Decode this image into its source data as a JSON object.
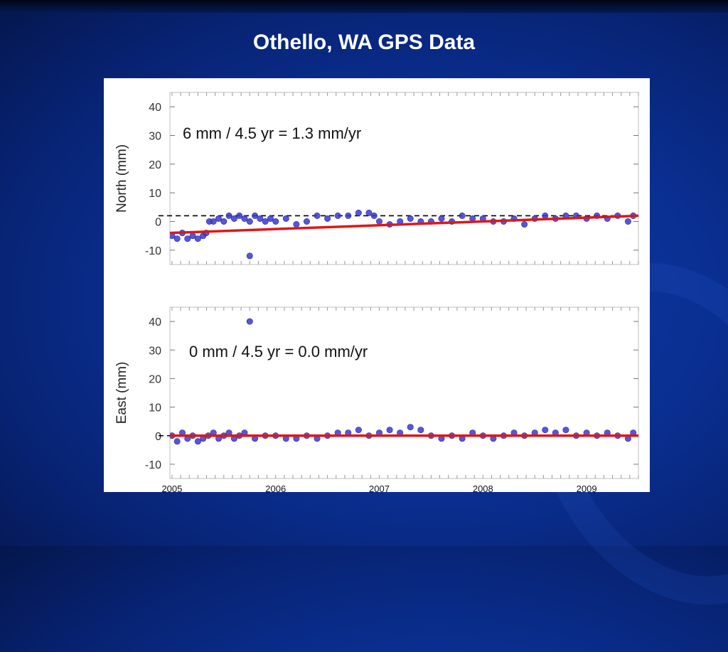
{
  "slide": {
    "title": "Othello, WA GPS Data"
  },
  "colors": {
    "background": "#0a2f92",
    "points": "#3a3acc",
    "trend": "#e01616",
    "reference": "#000000"
  },
  "chart_data": [
    {
      "type": "scatter",
      "ylabel": "North (mm)",
      "annotation": "6 mm / 4.5 yr = 1.3 mm/yr",
      "ylim": [
        -15,
        45
      ],
      "xlim": [
        2004.98,
        2009.5
      ],
      "yticks": [
        40,
        30,
        20,
        10,
        0,
        -10
      ],
      "reference_line": 2,
      "trend": {
        "x": [
          2004.98,
          2009.5
        ],
        "y": [
          -4,
          2
        ]
      },
      "series": [
        {
          "x": [
            2005.0,
            2005.05,
            2005.1,
            2005.15,
            2005.2,
            2005.25,
            2005.3,
            2005.33,
            2005.36,
            2005.4,
            2005.45,
            2005.5,
            2005.55,
            2005.6,
            2005.65,
            2005.7,
            2005.75,
            2005.8,
            2005.85,
            2005.9,
            2005.95,
            2006.0,
            2006.1,
            2006.2,
            2006.3,
            2006.4,
            2006.5,
            2006.6,
            2006.7,
            2006.8,
            2006.9,
            2006.95,
            2007.0,
            2007.1,
            2007.2,
            2007.3,
            2007.4,
            2007.5,
            2007.6,
            2007.7,
            2007.8,
            2007.9,
            2008.0,
            2008.1,
            2008.2,
            2008.3,
            2008.4,
            2008.5,
            2008.6,
            2008.7,
            2008.8,
            2008.9,
            2009.0,
            2009.1,
            2009.2,
            2009.3,
            2009.4,
            2009.45
          ],
          "y": [
            -5,
            -6,
            -4,
            -6,
            -5,
            -6,
            -5,
            -4,
            0,
            0,
            1,
            0,
            2,
            1,
            2,
            1,
            0,
            2,
            1,
            0,
            1,
            0,
            1,
            -1,
            0,
            2,
            1,
            2,
            2,
            3,
            3,
            2,
            0,
            -1,
            0,
            1,
            0,
            0,
            1,
            0,
            2,
            1,
            1,
            0,
            0,
            1,
            -1,
            1,
            2,
            1,
            2,
            2,
            1,
            2,
            1,
            2,
            0,
            2
          ]
        },
        {
          "x": [
            2005.75
          ],
          "y": [
            -12
          ]
        }
      ]
    },
    {
      "type": "scatter",
      "ylabel": "East (mm)",
      "annotation": "0 mm / 4.5 yr = 0.0 mm/yr",
      "ylim": [
        -15,
        45
      ],
      "xlim": [
        2004.98,
        2009.5
      ],
      "yticks": [
        40,
        30,
        20,
        10,
        0,
        -10
      ],
      "xticks": [
        "2005",
        "2006",
        "2007",
        "2008",
        "2009"
      ],
      "reference_line": 0,
      "trend": {
        "x": [
          2004.98,
          2009.5
        ],
        "y": [
          0,
          0
        ]
      },
      "series": [
        {
          "x": [
            2005.0,
            2005.05,
            2005.1,
            2005.15,
            2005.2,
            2005.25,
            2005.3,
            2005.35,
            2005.4,
            2005.45,
            2005.5,
            2005.55,
            2005.6,
            2005.65,
            2005.7,
            2005.8,
            2005.9,
            2006.0,
            2006.1,
            2006.2,
            2006.3,
            2006.4,
            2006.5,
            2006.6,
            2006.7,
            2006.8,
            2006.9,
            2007.0,
            2007.1,
            2007.2,
            2007.3,
            2007.4,
            2007.5,
            2007.6,
            2007.7,
            2007.8,
            2007.9,
            2008.0,
            2008.1,
            2008.2,
            2008.3,
            2008.4,
            2008.5,
            2008.6,
            2008.7,
            2008.8,
            2008.9,
            2009.0,
            2009.1,
            2009.2,
            2009.3,
            2009.4,
            2009.45
          ],
          "y": [
            0,
            -2,
            1,
            -1,
            0,
            -2,
            -1,
            0,
            1,
            -1,
            0,
            1,
            -1,
            0,
            1,
            -1,
            0,
            0,
            -1,
            -1,
            0,
            -1,
            0,
            1,
            1,
            2,
            0,
            1,
            2,
            1,
            3,
            2,
            0,
            -1,
            0,
            -1,
            1,
            0,
            -1,
            0,
            1,
            0,
            1,
            2,
            1,
            2,
            0,
            1,
            0,
            1,
            0,
            -1,
            1
          ]
        },
        {
          "x": [
            2005.75
          ],
          "y": [
            40
          ]
        }
      ]
    }
  ]
}
